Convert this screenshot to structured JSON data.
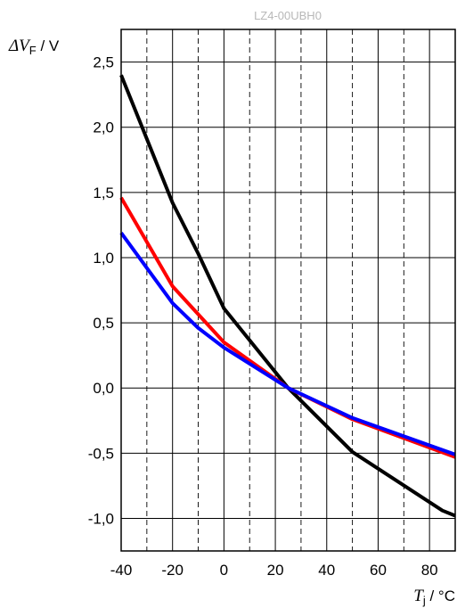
{
  "chart_data": {
    "type": "line",
    "title": "LZ4-00UBH0",
    "ylabel": {
      "symbol": "ΔV",
      "sub": "F",
      "unit": " / V"
    },
    "xlabel": {
      "symbol": "T",
      "sub": "j",
      "unit": " / °C"
    },
    "xlim": [
      -40,
      90
    ],
    "ylim": [
      -1.25,
      2.75
    ],
    "x_ticks": [
      "-40",
      "-20",
      "0",
      "20",
      "40",
      "60",
      "80"
    ],
    "x_tick_values": [
      -40,
      -20,
      0,
      20,
      40,
      60,
      80
    ],
    "y_ticks": [
      "2,5",
      "2,0",
      "1,5",
      "1,0",
      "0,5",
      "0,0",
      "-0,5",
      "-1,0"
    ],
    "y_tick_values": [
      2.5,
      2.0,
      1.5,
      1.0,
      0.5,
      0.0,
      -0.5,
      -1.0
    ],
    "grid": {
      "major_x": [
        -40,
        -20,
        0,
        20,
        40,
        60,
        80
      ],
      "minor_x": [
        -30,
        -10,
        10,
        30,
        50,
        70
      ],
      "y": [
        2.5,
        2.0,
        1.5,
        1.0,
        0.5,
        0.0,
        -0.5,
        -1.0
      ]
    },
    "series": [
      {
        "color": "#000000",
        "points": [
          [
            -40,
            2.4
          ],
          [
            -20,
            1.42
          ],
          [
            -10,
            1.03
          ],
          [
            0,
            0.61
          ],
          [
            25,
            0.0
          ],
          [
            50,
            -0.49
          ],
          [
            85,
            -0.94
          ],
          [
            90,
            -0.98
          ]
        ]
      },
      {
        "color": "#ff0000",
        "points": [
          [
            -40,
            1.46
          ],
          [
            -20,
            0.78
          ],
          [
            0,
            0.35
          ],
          [
            25,
            0.0
          ],
          [
            50,
            -0.24
          ],
          [
            90,
            -0.53
          ]
        ]
      },
      {
        "color": "#0000ff",
        "points": [
          [
            -40,
            1.19
          ],
          [
            -20,
            0.65
          ],
          [
            -10,
            0.46
          ],
          [
            0,
            0.31
          ],
          [
            25,
            0.0
          ],
          [
            50,
            -0.23
          ],
          [
            90,
            -0.51
          ]
        ]
      }
    ]
  }
}
